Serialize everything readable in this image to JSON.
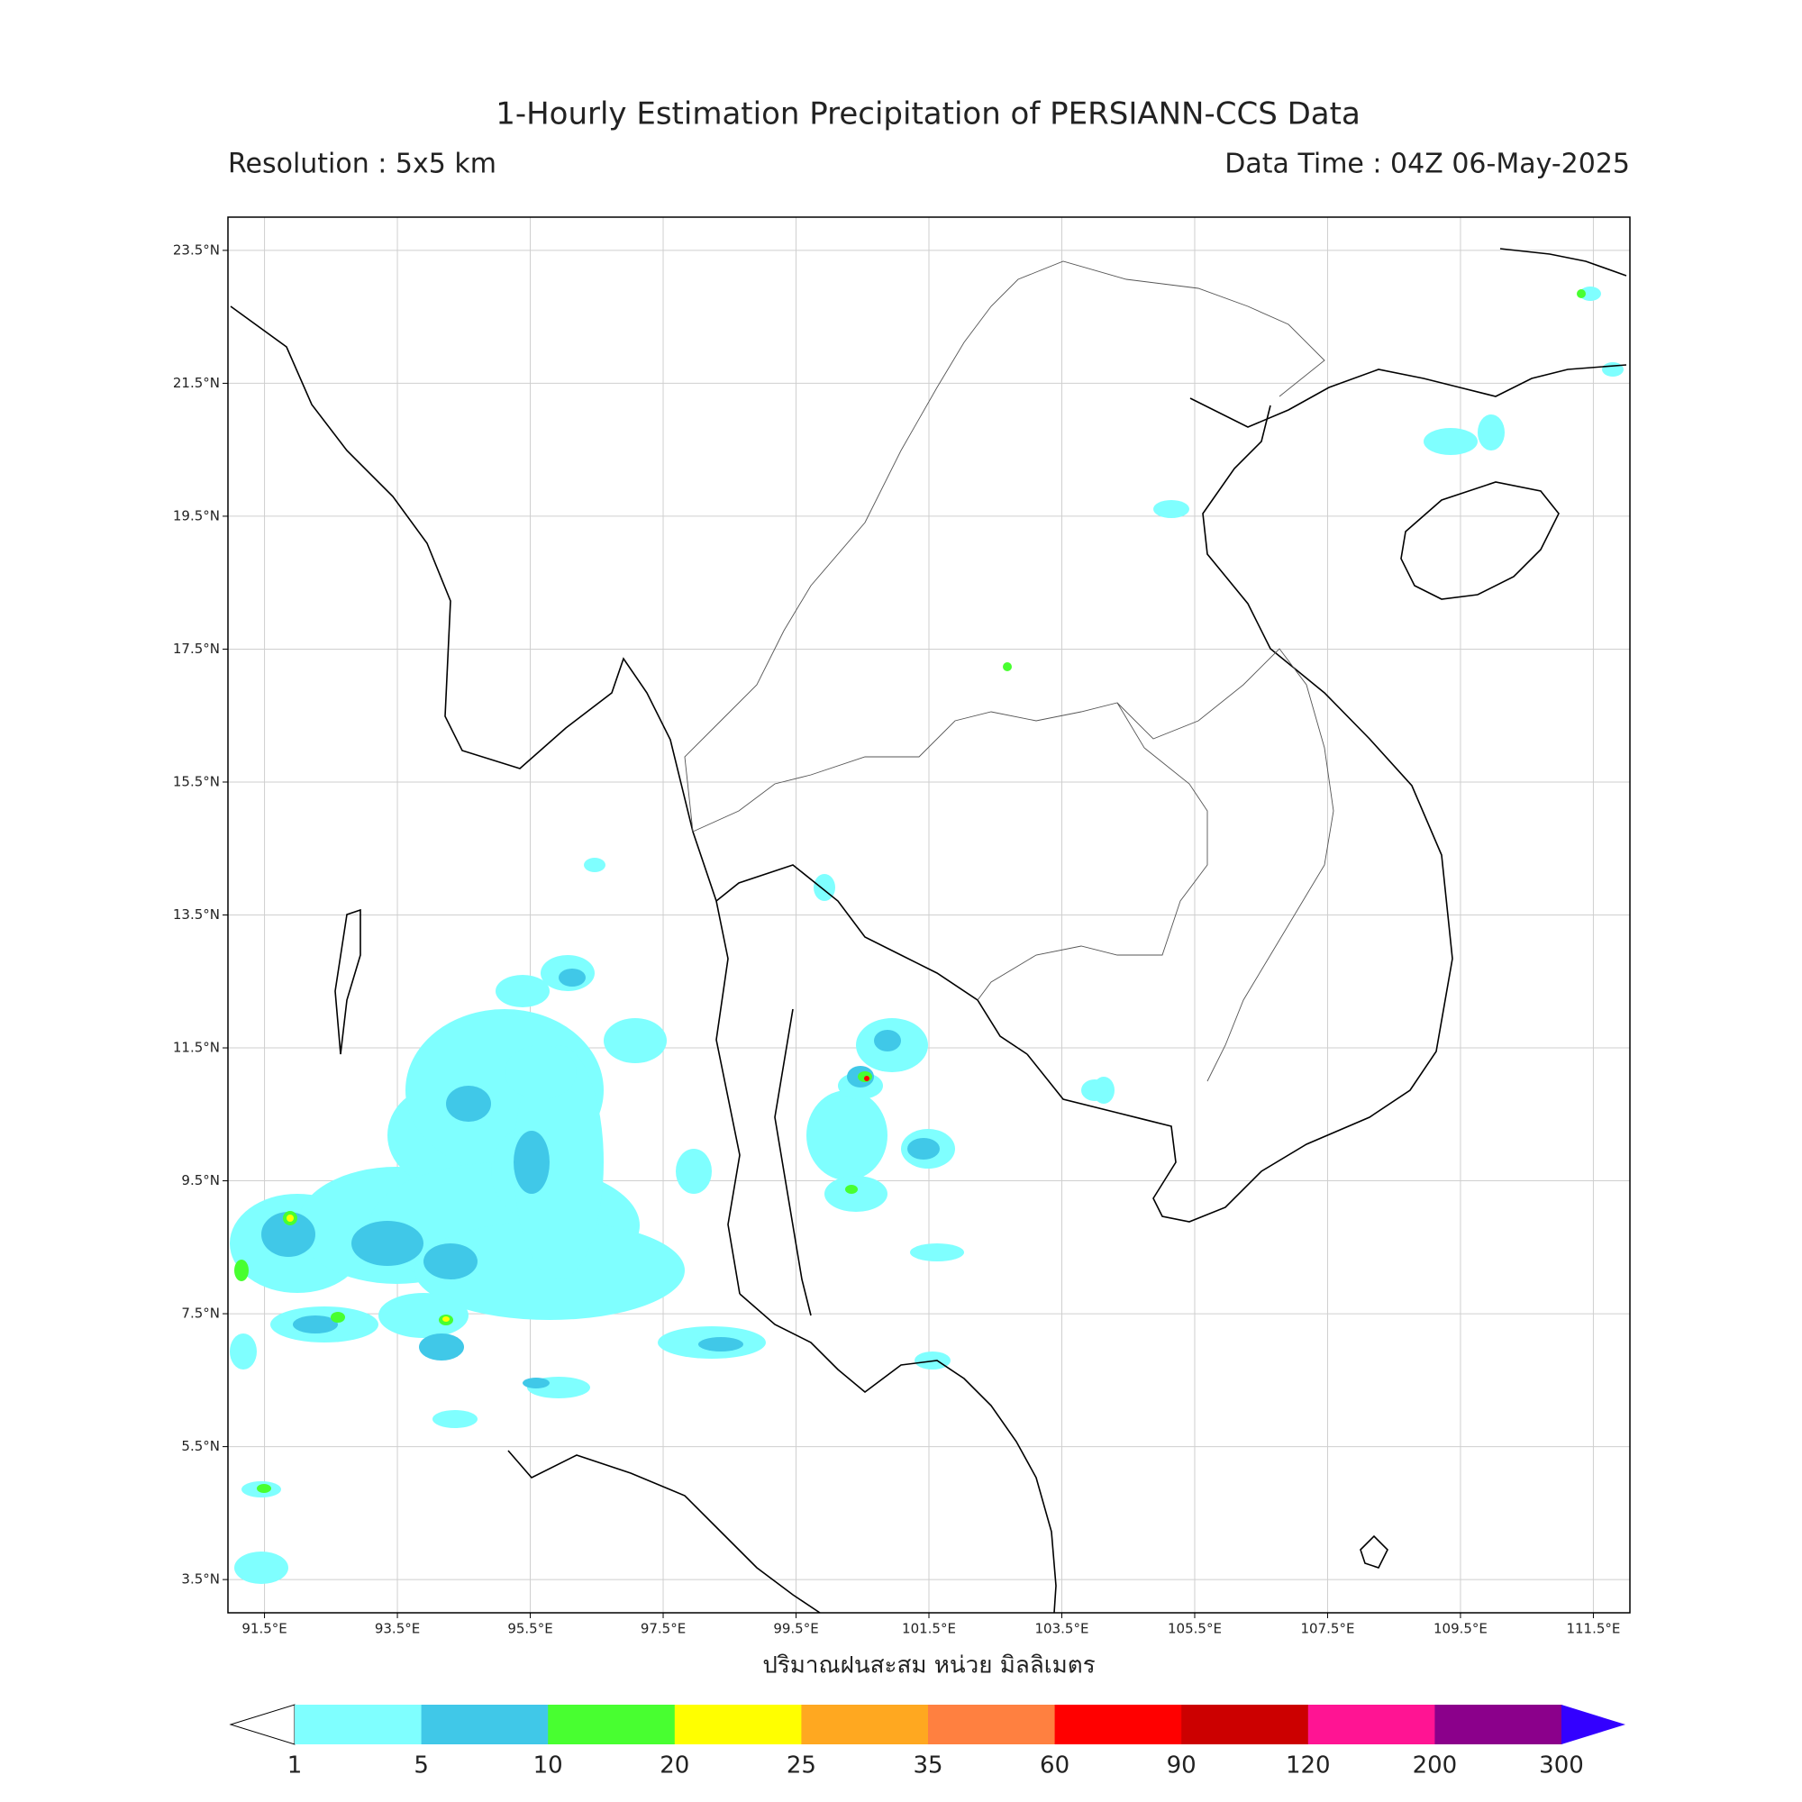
{
  "header": {
    "title": "1-Hourly Estimation Precipitation of PERSIANN-CCS Data",
    "resolution": "Resolution : 5x5 km",
    "data_time": "Data Time : 04Z 06-May-2025"
  },
  "map": {
    "lon_range": [
      90.95,
      112.05
    ],
    "lat_range": [
      3.0,
      24.0
    ],
    "lat_ticks": [
      {
        "value": 23.5,
        "label": "23.5°N"
      },
      {
        "value": 21.5,
        "label": "21.5°N"
      },
      {
        "value": 19.5,
        "label": "19.5°N"
      },
      {
        "value": 17.5,
        "label": "17.5°N"
      },
      {
        "value": 15.5,
        "label": "15.5°N"
      },
      {
        "value": 13.5,
        "label": "13.5°N"
      },
      {
        "value": 11.5,
        "label": "11.5°N"
      },
      {
        "value": 9.5,
        "label": "9.5°N"
      },
      {
        "value": 7.5,
        "label": "7.5°N"
      },
      {
        "value": 5.5,
        "label": "5.5°N"
      },
      {
        "value": 3.5,
        "label": "3.5°N"
      }
    ],
    "lon_ticks": [
      {
        "value": 91.5,
        "label": "91.5°E"
      },
      {
        "value": 93.5,
        "label": "93.5°E"
      },
      {
        "value": 95.5,
        "label": "95.5°E"
      },
      {
        "value": 97.5,
        "label": "97.5°E"
      },
      {
        "value": 99.5,
        "label": "99.5°E"
      },
      {
        "value": 101.5,
        "label": "101.5°E"
      },
      {
        "value": 103.5,
        "label": "103.5°E"
      },
      {
        "value": 105.5,
        "label": "105.5°E"
      },
      {
        "value": 107.5,
        "label": "107.5°E"
      },
      {
        "value": 109.5,
        "label": "109.5°E"
      },
      {
        "value": 111.5,
        "label": "111.5°E"
      }
    ],
    "xlabel": "ปริมาณฝนสะสม หน่วย มิลลิเมตร",
    "grid": true
  },
  "colorbar": {
    "levels": [
      1,
      5,
      10,
      20,
      25,
      35,
      60,
      90,
      120,
      200,
      300
    ],
    "colors": [
      "#7fffff",
      "#40c8e8",
      "#48ff30",
      "#ffff00",
      "#ffa820",
      "#ff8040",
      "#ff0000",
      "#cc0000",
      "#ff1493",
      "#8b008b"
    ],
    "under_color": "#ffffff",
    "over_color": "#3300ff"
  }
}
